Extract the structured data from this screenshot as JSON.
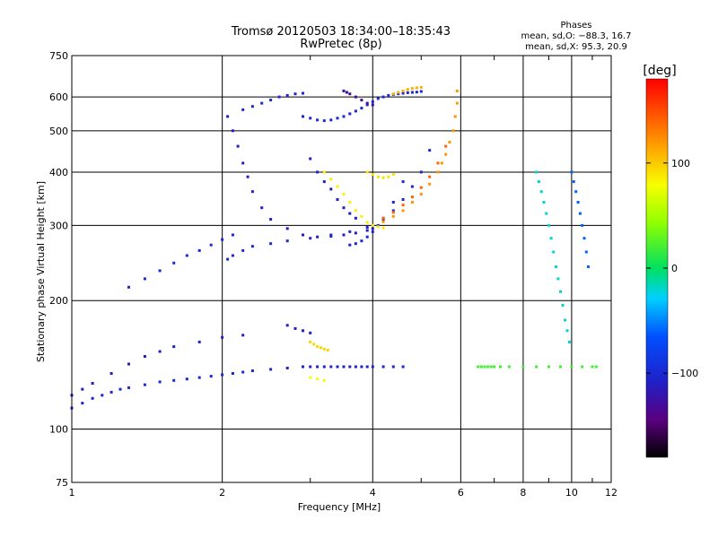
{
  "chart_data": {
    "type": "scatter",
    "title": "Tromsø 20120503 18:34:00–18:35:43",
    "subtitle": "RwPretec (8p)",
    "xlabel": "Frequency [MHz]",
    "ylabel": "Stationary phase Virtual Height [km]",
    "x_scale": "log",
    "y_scale": "log",
    "xlim": [
      1,
      12
    ],
    "ylim": [
      75,
      750
    ],
    "x_ticks": [
      "1",
      "2",
      "4",
      "6",
      "8",
      "10",
      "12"
    ],
    "x_tick_values": [
      1,
      2,
      4,
      6,
      8,
      10,
      12
    ],
    "y_ticks": [
      "75",
      "100",
      "200",
      "300",
      "400",
      "500",
      "600",
      "750"
    ],
    "y_tick_values": [
      75,
      100,
      200,
      300,
      400,
      500,
      600,
      750
    ],
    "grid": true,
    "phases_info": {
      "title": "Phases",
      "line_o": "mean, sd,O: −88.3, 16.7",
      "line_x": "mean, sd,X:  95.3, 20.9"
    },
    "colorbar": {
      "label": "[deg]",
      "range": [
        -180,
        180
      ],
      "ticks": [
        "100",
        "0",
        "−100"
      ],
      "tick_values": [
        100,
        0,
        -100
      ]
    },
    "series": [
      {
        "traces": [
          {
            "x": [
              1.0,
              1.05,
              1.1,
              1.15,
              1.2,
              1.25,
              1.3,
              1.4,
              1.5,
              1.6,
              1.7,
              1.8,
              1.9,
              2.0,
              2.1,
              2.2,
              2.3,
              2.5,
              2.7,
              2.9
            ],
            "y": [
              112,
              115,
              118,
              120,
              122,
              124,
              125,
              127,
              129,
              130,
              131,
              132,
              133,
              134,
              135,
              136,
              137,
              138,
              139,
              140
            ],
            "phase": -100
          },
          {
            "x": [
              1.0,
              1.05,
              1.1,
              1.2,
              1.3,
              1.4,
              1.5,
              1.6,
              1.8,
              2.0,
              2.2
            ],
            "y": [
              120,
              124,
              128,
              135,
              142,
              148,
              152,
              156,
              160,
              164,
              166
            ],
            "phase": -110
          },
          {
            "x": [
              1.3,
              1.4,
              1.5,
              1.6,
              1.7,
              1.8,
              1.9,
              2.0,
              2.1
            ],
            "y": [
              215,
              225,
              235,
              245,
              255,
              262,
              270,
              278,
              285
            ],
            "phase": -100
          },
          {
            "x": [
              2.05,
              2.1,
              2.15,
              2.2,
              2.25,
              2.3,
              2.4,
              2.5,
              2.7,
              2.9,
              3.1,
              3.3,
              3.5,
              3.7,
              3.9,
              4.0
            ],
            "y": [
              540,
              500,
              460,
              420,
              390,
              360,
              330,
              310,
              295,
              285,
              282,
              283,
              285,
              288,
              292,
              295
            ],
            "phase": -110
          },
          {
            "x": [
              2.05,
              2.1,
              2.2,
              2.3,
              2.5,
              2.7,
              3.0,
              3.3,
              3.6,
              3.9,
              4.2,
              4.4,
              4.6,
              4.8,
              5.0,
              5.2
            ],
            "y": [
              250,
              255,
              262,
              268,
              272,
              276,
              280,
              285,
              290,
              297,
              310,
              325,
              345,
              370,
              400,
              450
            ],
            "phase": -100
          },
          {
            "x": [
              2.9,
              3.0,
              3.1,
              3.2,
              3.3,
              3.4,
              3.5,
              3.6,
              3.7,
              3.8,
              3.9,
              4.0,
              4.1,
              4.2,
              4.3,
              4.4,
              4.5,
              4.6,
              4.7,
              4.8,
              4.9,
              5.0
            ],
            "y": [
              540,
              535,
              530,
              528,
              530,
              535,
              540,
              548,
              556,
              565,
              575,
              585,
              595,
              600,
              605,
              608,
              610,
              612,
              614,
              615,
              616,
              618
            ],
            "phase": -100
          },
          {
            "x": [
              2.2,
              2.3,
              2.4,
              2.5,
              2.6,
              2.7,
              2.8,
              2.9
            ],
            "y": [
              560,
              570,
              580,
              590,
              600,
              605,
              610,
              612
            ],
            "phase": -100
          },
          {
            "x": [
              3.0,
              3.1,
              3.2,
              3.3,
              3.4,
              3.5,
              3.6,
              3.7
            ],
            "y": [
              430,
              400,
              380,
              365,
              345,
              330,
              320,
              312
            ],
            "phase": -110
          },
          {
            "x": [
              3.6,
              3.7,
              3.8,
              3.9,
              4.0,
              4.1,
              4.2,
              4.4,
              4.6
            ],
            "y": [
              270,
              272,
              276,
              282,
              290,
              300,
              312,
              340,
              380
            ],
            "phase": -100
          },
          {
            "x": [
              3.5,
              3.55,
              3.6,
              3.7,
              3.8,
              3.9,
              4.0
            ],
            "y": [
              620,
              615,
              610,
              600,
              590,
              580,
              575
            ],
            "phase": -130
          },
          {
            "x": [
              2.9,
              3.0,
              3.1,
              3.2,
              3.3,
              3.4,
              3.5,
              3.6,
              3.7,
              3.8,
              3.9,
              4.0,
              4.2,
              4.4,
              4.6
            ],
            "y": [
              140,
              140,
              140,
              140,
              140,
              140,
              140,
              140,
              140,
              140,
              140,
              140,
              140,
              140,
              140
            ],
            "phase": -105
          },
          {
            "x": [
              2.7,
              2.8,
              2.9,
              3.0
            ],
            "y": [
              175,
              172,
              170,
              168
            ],
            "phase": -110
          }
        ]
      },
      {
        "traces": [
          {
            "x": [
              4.0,
              4.2,
              4.4,
              4.6,
              4.8,
              5.0,
              5.2,
              5.4,
              5.5,
              5.6,
              5.7,
              5.8,
              5.85,
              5.9,
              5.9
            ],
            "y": [
              300,
              306,
              315,
              325,
              340,
              355,
              375,
              400,
              420,
              440,
              470,
              500,
              540,
              580,
              620
            ],
            "phase": 120
          },
          {
            "x": [
              4.2,
              4.4,
              4.6,
              4.8,
              5.0,
              5.2,
              5.4,
              5.6
            ],
            "y": [
              312,
              322,
              335,
              350,
              368,
              390,
              420,
              460
            ],
            "phase": 140
          },
          {
            "x": [
              3.2,
              3.3,
              3.4,
              3.5,
              3.6,
              3.7,
              3.8,
              3.9,
              4.0,
              4.1,
              4.2
            ],
            "y": [
              400,
              385,
              370,
              355,
              340,
              325,
              315,
              305,
              300,
              298,
              296
            ],
            "phase": 85
          },
          {
            "x": [
              3.9,
              4.0,
              4.1,
              4.2,
              4.3,
              4.4
            ],
            "y": [
              400,
              395,
              390,
              388,
              390,
              395
            ],
            "phase": 90
          },
          {
            "x": [
              4.4,
              4.5,
              4.6,
              4.7,
              4.8,
              4.9,
              5.0
            ],
            "y": [
              610,
              615,
              620,
              625,
              628,
              630,
              632
            ],
            "phase": 110
          },
          {
            "x": [
              3.0,
              3.05,
              3.1,
              3.15,
              3.2,
              3.25
            ],
            "y": [
              160,
              158,
              156,
              155,
              154,
              153
            ],
            "phase": 95
          },
          {
            "x": [
              3.0,
              3.1,
              3.2
            ],
            "y": [
              132,
              131,
              130
            ],
            "phase": 80
          }
        ]
      },
      {
        "traces": [
          {
            "x": [
              6.5,
              6.6,
              6.7,
              6.8,
              6.9,
              7.0,
              7.2,
              7.5,
              8.0,
              8.5,
              9.0,
              9.5,
              10.0,
              10.5,
              11.0,
              11.2
            ],
            "y": [
              140,
              140,
              140,
              140,
              140,
              140,
              140,
              140,
              140,
              140,
              140,
              140,
              140,
              140,
              140,
              140
            ],
            "phase": 20
          },
          {
            "x": [
              8.5,
              8.6,
              8.7,
              8.8,
              8.9,
              9.0,
              9.1,
              9.2,
              9.3,
              9.4,
              9.5,
              9.6,
              9.7,
              9.8,
              9.9
            ],
            "y": [
              400,
              380,
              360,
              340,
              320,
              300,
              280,
              260,
              240,
              225,
              210,
              195,
              180,
              170,
              160
            ],
            "phase": -20
          },
          {
            "x": [
              10.0,
              10.1,
              10.2,
              10.3,
              10.4,
              10.5,
              10.6,
              10.7,
              10.8
            ],
            "y": [
              400,
              380,
              360,
              340,
              320,
              300,
              280,
              260,
              240
            ],
            "phase": -60
          }
        ]
      }
    ]
  }
}
